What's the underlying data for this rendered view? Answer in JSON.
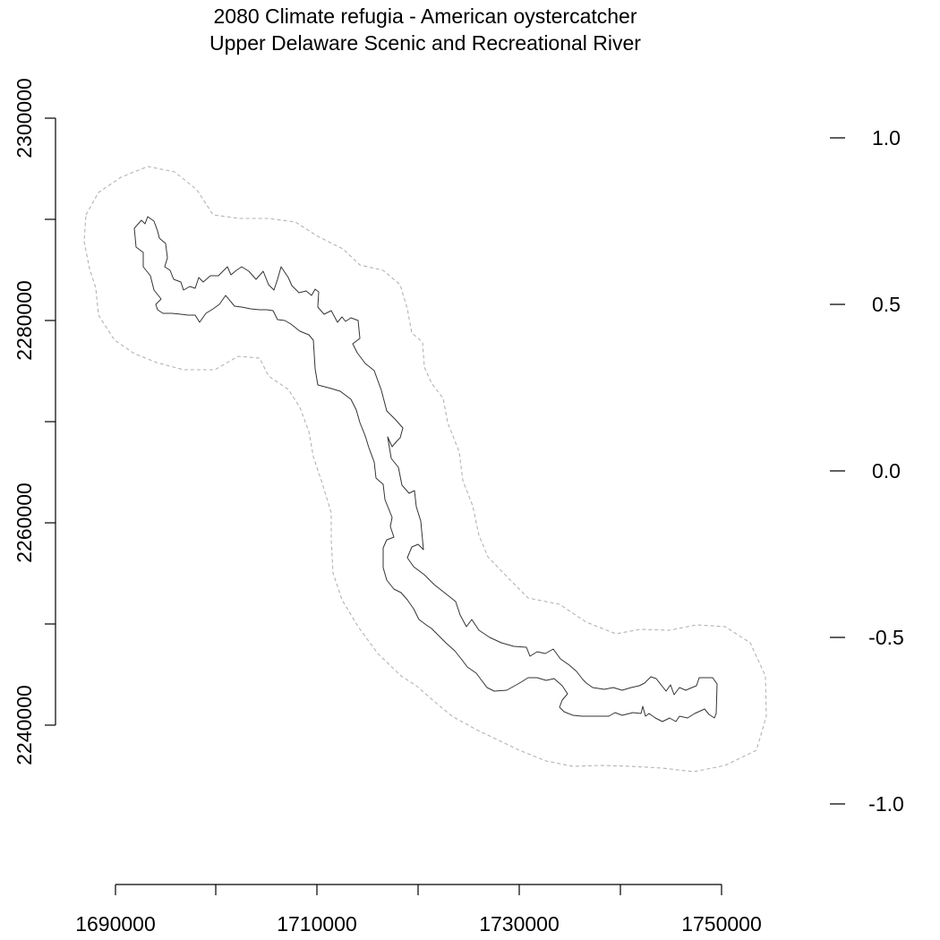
{
  "title": {
    "line1": "2080 Climate refugia - American oystercatcher",
    "line2": "Upper Delaware Scenic and Recreational River"
  },
  "colors": {
    "background": "#ffffff",
    "river_outline": "#333333",
    "buffer_outline": "#b3b3b3",
    "axis": "#000000"
  },
  "map": {
    "x_ticks": [
      "1690000",
      "1710000",
      "1730000",
      "1750000"
    ],
    "y_ticks": [
      "2240000",
      "2260000",
      "2280000",
      "2300000"
    ],
    "legend_ticks": [
      "1.0",
      "0.5",
      "0.0",
      "-0.5",
      "-1.0"
    ],
    "layers": [
      "river-boundary",
      "buffer-boundary"
    ]
  }
}
